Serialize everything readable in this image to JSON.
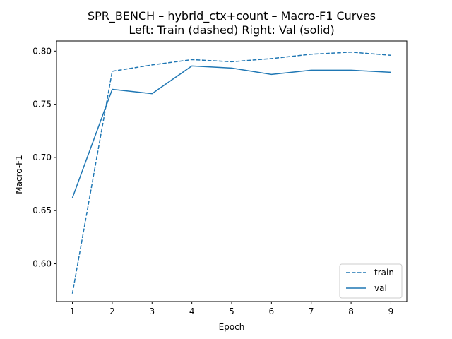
{
  "chart_data": {
    "type": "line",
    "title": "SPR_BENCH – hybrid_ctx+count – Macro-F1 Curves",
    "subtitle": "Left: Train (dashed)  Right: Val (solid)",
    "xlabel": "Epoch",
    "ylabel": "Macro-F1",
    "x": [
      1,
      2,
      3,
      4,
      5,
      6,
      7,
      8,
      9
    ],
    "xlim": [
      0.6,
      9.4
    ],
    "ylim": [
      0.5645,
      0.8095
    ],
    "xticks": [
      1,
      2,
      3,
      4,
      5,
      6,
      7,
      8,
      9
    ],
    "yticks": [
      0.6,
      0.65,
      0.7,
      0.75,
      0.8
    ],
    "ytick_labels": [
      "0.60",
      "0.65",
      "0.70",
      "0.75",
      "0.80"
    ],
    "grid": false,
    "legend_position": "bottom-right",
    "series": [
      {
        "name": "train",
        "style": "dashed",
        "color": "#1f77b4",
        "values": [
          0.572,
          0.781,
          0.787,
          0.792,
          0.79,
          0.793,
          0.797,
          0.799,
          0.796
        ]
      },
      {
        "name": "val",
        "style": "solid",
        "color": "#1f77b4",
        "values": [
          0.662,
          0.764,
          0.76,
          0.786,
          0.784,
          0.778,
          0.782,
          0.782,
          0.78
        ]
      }
    ]
  }
}
